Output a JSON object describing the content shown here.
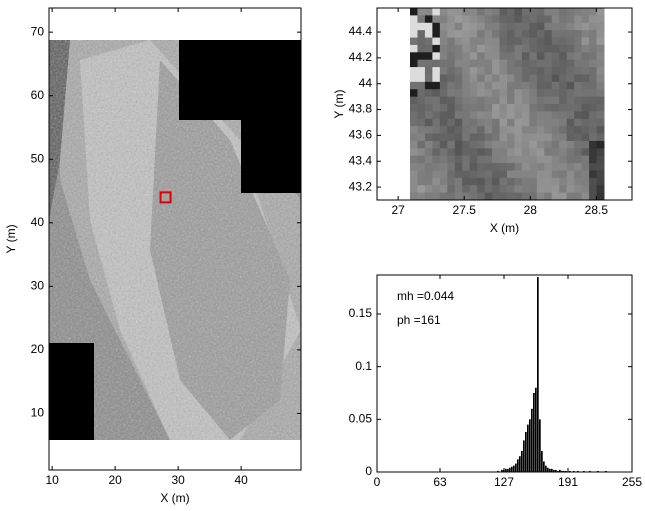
{
  "chart_data": [
    {
      "type": "image",
      "xlabel": "X (m)",
      "ylabel": "Y (m)",
      "xlim": [
        9.5,
        49.5
      ],
      "ylim": [
        1.1,
        73.8
      ],
      "xticks": [
        10,
        20,
        30,
        40
      ],
      "yticks": [
        10,
        20,
        30,
        40,
        50,
        60,
        70
      ],
      "marker": {
        "x": 28,
        "y": 44,
        "color": "#e00000"
      }
    },
    {
      "type": "image-zoom",
      "xlabel": "X (m)",
      "ylabel": "Y (m)",
      "xlim": [
        26.84,
        28.77
      ],
      "ylim": [
        43.1,
        44.586
      ],
      "xticks": [
        27,
        27.5,
        28,
        28.5
      ],
      "yticks": [
        43.2,
        43.4,
        43.6,
        43.8,
        44,
        44.2,
        44.4
      ]
    },
    {
      "type": "histogram",
      "annotations": [
        "mh =0.044",
        "ph =161"
      ],
      "color": "#000000",
      "xlim": [
        0,
        255
      ],
      "ylim": [
        0,
        0.187
      ],
      "xticks": [
        0,
        63,
        127,
        191,
        255
      ],
      "yticks": [
        0,
        0.05,
        0.1,
        0.15
      ],
      "bins": [
        120,
        122,
        124,
        126,
        128,
        130,
        132,
        134,
        136,
        138,
        140,
        142,
        144,
        146,
        148,
        150,
        152,
        154,
        156,
        158,
        160,
        162,
        164,
        166,
        168,
        170,
        172,
        174,
        176,
        178,
        180,
        182,
        184,
        186,
        188,
        190,
        192,
        194,
        196,
        198,
        200,
        202,
        204,
        206,
        208,
        210,
        212,
        214,
        216,
        218,
        220,
        222,
        224,
        226,
        228,
        230,
        232
      ],
      "counts": [
        0.001,
        0,
        0.002,
        0.002,
        0.003,
        0.003,
        0.004,
        0.005,
        0.006,
        0.008,
        0.012,
        0.015,
        0.02,
        0.03,
        0.038,
        0.045,
        0.05,
        0.06,
        0.075,
        0.08,
        0.185,
        0.05,
        0.02,
        0.01,
        0.006,
        0.004,
        0.003,
        0.003,
        0.002,
        0.002,
        0.001,
        0.002,
        0.001,
        0.001,
        0.001,
        0,
        0.001,
        0,
        0.001,
        0,
        0.001,
        0,
        0,
        0.001,
        0,
        0,
        0.001,
        0,
        0,
        0,
        0.001,
        0,
        0,
        0,
        0.001,
        0
      ]
    }
  ]
}
